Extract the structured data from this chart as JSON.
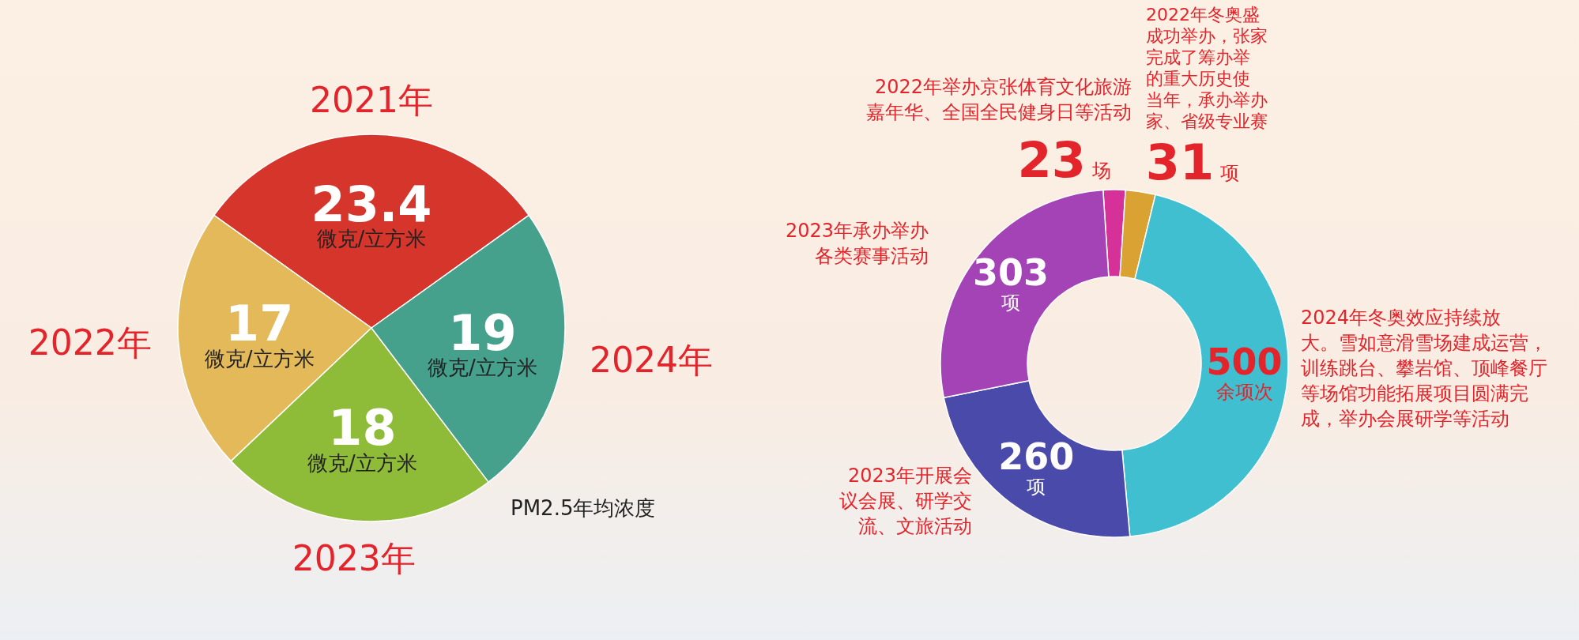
{
  "chart_data": [
    {
      "type": "pie",
      "title": "PM2.5年均浓度",
      "categories": [
        "2021年",
        "2022年",
        "2023年",
        "2024年"
      ],
      "values": [
        23.4,
        17,
        18,
        19
      ],
      "colors": [
        "#d5352a",
        "#e3b95a",
        "#8fbc38",
        "#45a18c"
      ],
      "value_labels": [
        "23.4\n微克/立方米",
        "17\n微克/立方米",
        "18\n微克/立方米",
        "19\n微克/立方米"
      ]
    },
    {
      "type": "donut",
      "categories": [
        "2022年举办京张体育文化旅游嘉年华、全国全民健身日等活动",
        "2022年冬奥盛成功举办，张家完成了筹办举的重大历史使当年，承办举办家、省级专业赛",
        "2024年冬奥效应持续放大。雪如意滑雪场建成运营，训练跳台、攀岩馆、顶峰餐厅等场馆功能拓展项目圆满完成，举办会展研学等活动",
        "2023年开展会议会展、研学交流、文旅活动",
        "2023年承办举办各类赛事活动"
      ],
      "values": [
        23,
        31,
        500,
        260,
        303
      ],
      "colors": [
        "#d63198",
        "#d9a232",
        "#3fbfcf",
        "#4a4aaa",
        "#a443b6"
      ],
      "value_labels": [
        "23场",
        "31项",
        "500\n余项次",
        "260\n项",
        "303\n项"
      ]
    }
  ]
}
